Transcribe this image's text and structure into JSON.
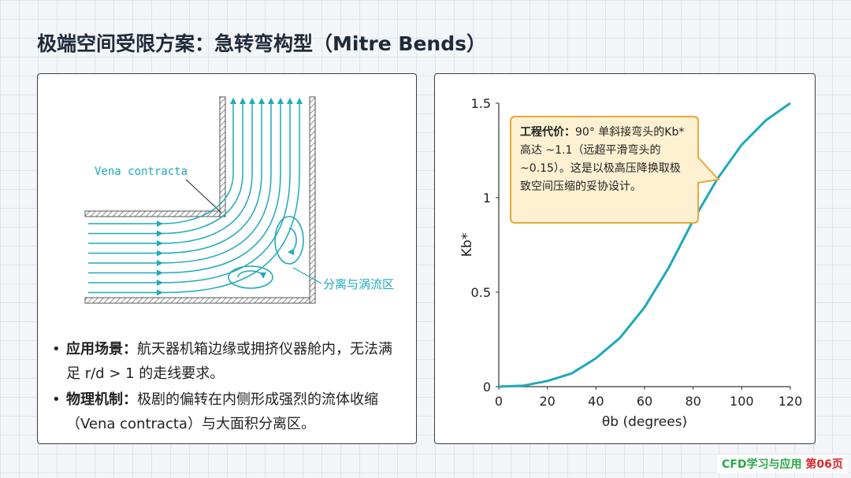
{
  "header": {
    "title": "极端空间受限方案：急转弯构型（Mitre Bends）"
  },
  "diagram": {
    "vena_label": "Vena contracta",
    "separation_label": "分离与涡流区"
  },
  "bullets": [
    {
      "label": "应用场景：",
      "text": "航天器机箱边缘或拥挤仪器舱内，无法满足 r/d > 1 的走线要求。"
    },
    {
      "label": "物理机制：",
      "text": "极剧的偏转在内侧形成强烈的流体收缩（Vena contracta）与大面积分离区。"
    }
  ],
  "chart_data": {
    "type": "line",
    "x_label": "θb (degrees)",
    "y_label": "Kb*",
    "x": [
      0,
      10,
      20,
      30,
      40,
      50,
      60,
      70,
      80,
      90,
      100,
      110,
      120
    ],
    "series": [
      {
        "name": "Kb*",
        "color": "#1fa9bb",
        "values": [
          0,
          0.005,
          0.03,
          0.07,
          0.15,
          0.26,
          0.42,
          0.63,
          0.88,
          1.1,
          1.28,
          1.41,
          1.5
        ]
      }
    ],
    "xlim": [
      0,
      120
    ],
    "ylim": [
      0,
      1.5
    ],
    "xticks": [
      0,
      20,
      40,
      60,
      80,
      100,
      120
    ],
    "yticks": [
      0,
      0.5,
      1,
      1.5
    ],
    "annotation": {
      "label": "工程代价：",
      "text": "90° 单斜接弯头的Kb* 高达 ~1.1（远超平滑弯头的 ~0.15）。这是以极高压降换取极致空间压缩的妥协设计。"
    }
  },
  "footer": {
    "brand": "CFD学习与应用",
    "page": "第06页"
  }
}
